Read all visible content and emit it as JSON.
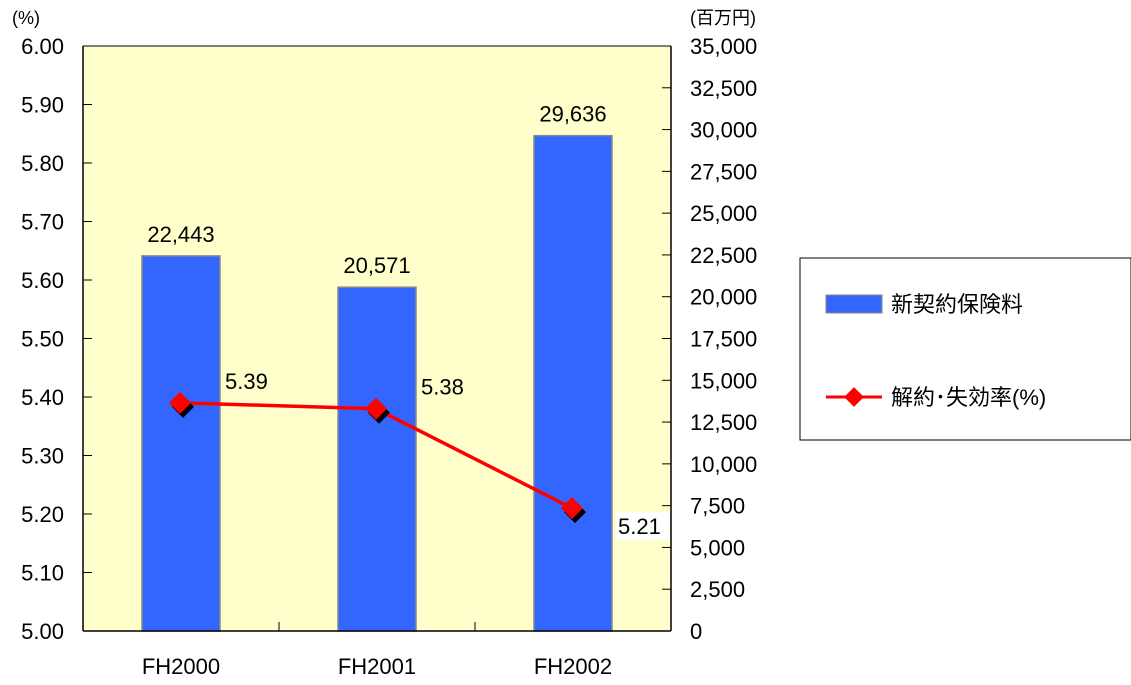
{
  "chart_data": {
    "type": "bar",
    "categories": [
      "FH2000",
      "FH2001",
      "FH2002"
    ],
    "series": [
      {
        "name": "新契約保険料",
        "type": "bar",
        "axis": "right",
        "values": [
          22443,
          20571,
          29636
        ],
        "value_labels": [
          "22,443",
          "20,571",
          "29,636"
        ],
        "color": "#3366ff"
      },
      {
        "name": "解約･失効率(%)",
        "type": "line",
        "axis": "left",
        "values": [
          5.39,
          5.38,
          5.21
        ],
        "value_labels": [
          "5.39",
          "5.38",
          "5.21"
        ],
        "color": "#ff0000"
      }
    ],
    "left_axis": {
      "unit": "(%)",
      "ylim": [
        5.0,
        6.0
      ],
      "ticks": [
        "5.00",
        "5.10",
        "5.20",
        "5.30",
        "5.40",
        "5.50",
        "5.60",
        "5.70",
        "5.80",
        "5.90",
        "6.00"
      ]
    },
    "right_axis": {
      "unit": "(百万円)",
      "ylim": [
        0,
        35000
      ],
      "ticks": [
        "0",
        "2,500",
        "5,000",
        "7,500",
        "10,000",
        "12,500",
        "15,000",
        "17,500",
        "20,000",
        "22,500",
        "25,000",
        "27,500",
        "30,000",
        "32,500",
        "35,000"
      ]
    },
    "plot_background": "#ffffcc",
    "legend_placement": "right",
    "grid": false
  }
}
